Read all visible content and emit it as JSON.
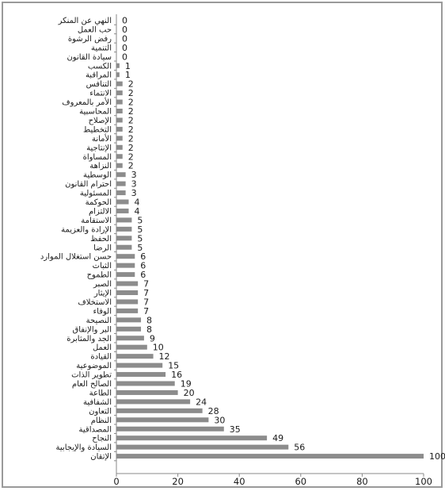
{
  "chart_data": {
    "type": "bar",
    "orientation": "horizontal",
    "categories": [
      "النهي عن المنكر",
      "حب العمل",
      "رفض الرشوة",
      "التنمية",
      "سيادة القانون",
      "الكسب",
      "المراقبة",
      "التنافس",
      "الانتماء",
      "الأمر بالمعروف",
      "المحاسبية",
      "الإصلاح",
      "التخطيط",
      "الأمانة",
      "الإنتاجية",
      "المساواة",
      "النزاهة",
      "الوسطية",
      "احترام القانون",
      "المسئولية",
      "الحوكمة",
      "الالتزام",
      "الاستقامة",
      "الإرادة والعزيمة",
      "الحفظ",
      "الرضا",
      "حسن استغلال الموارد",
      "الثبات",
      "الطموح",
      "الصبر",
      "الإيثار",
      "الاستخلاف",
      "الوفاء",
      "النصيحة",
      "البر والإنفاق",
      "الجد والمثابرة",
      "العمل",
      "القيادة",
      "الموضوعية",
      "تطوير الذات",
      "الصالح العام",
      "الطاعة",
      "الشفافية",
      "التعاون",
      "النظام",
      "المصداقية",
      "النجاح",
      "السيادة والإيجابية",
      "الإتقان"
    ],
    "values": [
      0,
      0,
      0,
      0,
      0,
      1,
      1,
      2,
      2,
      2,
      2,
      2,
      2,
      2,
      2,
      2,
      2,
      3,
      3,
      3,
      4,
      4,
      5,
      5,
      5,
      5,
      6,
      6,
      6,
      7,
      7,
      7,
      7,
      8,
      8,
      9,
      10,
      12,
      15,
      16,
      19,
      20,
      24,
      28,
      30,
      35,
      49,
      56,
      100
    ],
    "xlim": [
      0,
      100
    ],
    "xticks": [
      0,
      20,
      40,
      60,
      80,
      100
    ],
    "bar_color": "#8c8c8c",
    "grid": false,
    "legend": "none"
  }
}
